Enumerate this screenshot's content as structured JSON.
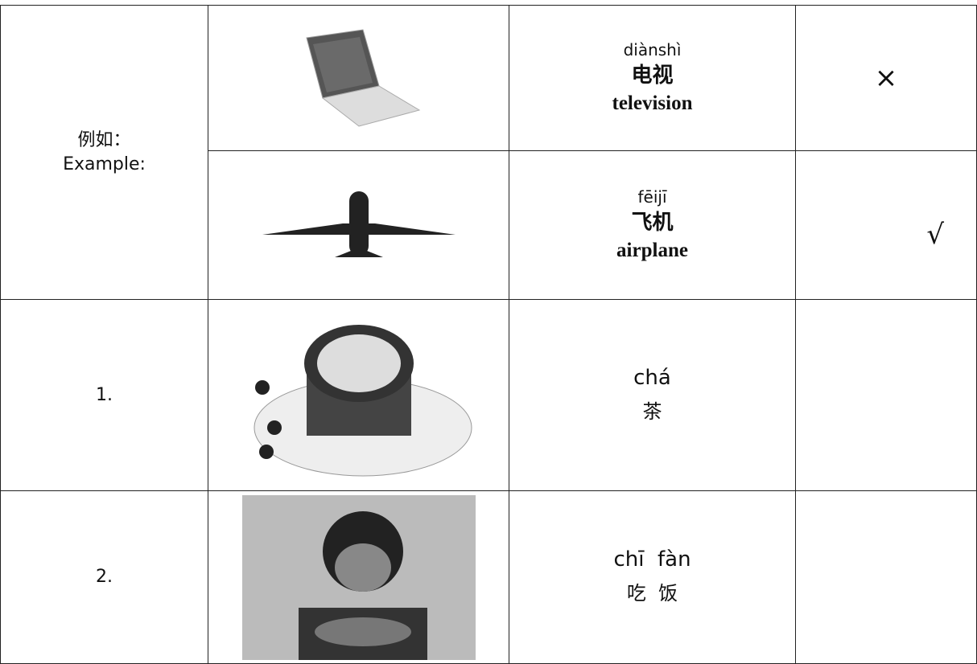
{
  "example": {
    "label_cn": "例如：",
    "label_en": "Example:",
    "items": [
      {
        "pinyin": "diànshì",
        "hanzi": "电视",
        "english": "television",
        "mark": "×"
      },
      {
        "pinyin": "fēijī",
        "hanzi": "飞机",
        "english": "airplane",
        "mark": "√"
      }
    ]
  },
  "questions": [
    {
      "number": "1.",
      "pinyin": "chá",
      "hanzi": "茶"
    },
    {
      "number": "2.",
      "pinyin": "chī  fàn",
      "hanzi": "吃  饭"
    }
  ]
}
